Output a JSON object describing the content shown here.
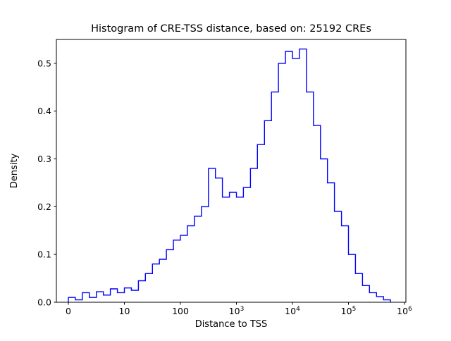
{
  "chart_data": {
    "type": "histogram",
    "title": "Histogram of CRE-TSS distance, based on: 25192 CREs",
    "xlabel": "Distance to TSS",
    "ylabel": "Density",
    "x_scale": "symlog",
    "x_tick_positions": [
      0,
      1,
      2,
      3,
      4,
      5,
      6
    ],
    "x_tick_labels": [
      "0",
      "10",
      "100",
      "10^3",
      "10^4",
      "10^5",
      "10^6"
    ],
    "y_ticks": [
      0.0,
      0.1,
      0.2,
      0.3,
      0.4,
      0.5
    ],
    "ylim": [
      0,
      0.55
    ],
    "bin_start_decades": 0,
    "bin_width_decades": 0.125,
    "densities": [
      0.01,
      0.005,
      0.02,
      0.01,
      0.022,
      0.015,
      0.028,
      0.02,
      0.03,
      0.025,
      0.045,
      0.06,
      0.08,
      0.09,
      0.11,
      0.13,
      0.14,
      0.16,
      0.18,
      0.2,
      0.28,
      0.26,
      0.22,
      0.23,
      0.22,
      0.24,
      0.28,
      0.33,
      0.38,
      0.44,
      0.5,
      0.525,
      0.51,
      0.53,
      0.44,
      0.37,
      0.3,
      0.25,
      0.19,
      0.16,
      0.1,
      0.06,
      0.035,
      0.02,
      0.012,
      0.005
    ],
    "line_color": "#0000ff",
    "background_color": "#ffffff",
    "grid": "off",
    "legend": "none"
  }
}
